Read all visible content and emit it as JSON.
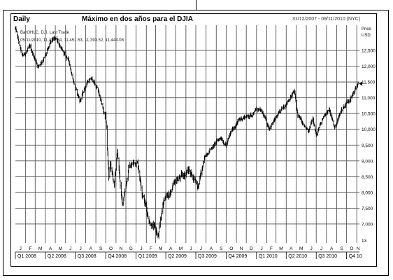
{
  "header": {
    "period": "Daily",
    "title": "Máximo en dos años para el DJIA",
    "date_range": "31/12/2007 - 09/11/2010 (NYC)"
  },
  "legend": {
    "line1": "BarOHLC, DJI, Last Trade",
    "line2": "05/11/2010, 11,434.84, 11,451.53, 11,393.52, 11,444.08"
  },
  "price_axis": {
    "label": "Price",
    "unit": "USD"
  },
  "chart_data": {
    "type": "bar",
    "title": "Máximo en dos años para el DJIA",
    "series": [
      {
        "name": "DJI",
        "x": [
          "2008-01-01",
          "2008-01-22",
          "2008-02-15",
          "2008-03-10",
          "2008-03-31",
          "2008-04-20",
          "2008-05-05",
          "2008-05-20",
          "2008-06-10",
          "2008-07-01",
          "2008-07-15",
          "2008-08-05",
          "2008-08-20",
          "2008-09-05",
          "2008-09-29",
          "2008-10-01",
          "2008-10-10",
          "2008-10-15",
          "2008-10-27",
          "2008-11-05",
          "2008-11-20",
          "2008-12-10",
          "2009-01-05",
          "2009-01-20",
          "2009-02-10",
          "2009-03-02",
          "2009-03-09",
          "2009-03-26",
          "2009-04-15",
          "2009-05-05",
          "2009-06-10",
          "2009-06-30",
          "2009-07-08",
          "2009-07-31",
          "2009-08-25",
          "2009-09-15",
          "2009-10-01",
          "2009-10-20",
          "2009-11-10",
          "2009-11-27",
          "2009-12-15",
          "2010-01-04",
          "2010-01-19",
          "2010-02-08",
          "2010-03-05",
          "2010-04-05",
          "2010-04-26",
          "2010-05-06",
          "2010-05-25",
          "2010-06-08",
          "2010-06-21",
          "2010-07-02",
          "2010-07-27",
          "2010-08-10",
          "2010-08-26",
          "2010-09-15",
          "2010-10-05",
          "2010-10-20",
          "2010-11-05"
        ],
        "values": [
          13200,
          12300,
          12600,
          12000,
          12300,
          12800,
          12900,
          12500,
          12200,
          11300,
          10900,
          11500,
          11600,
          11300,
          10400,
          10500,
          8500,
          8900,
          8200,
          9300,
          7600,
          8800,
          9000,
          8000,
          7100,
          6800,
          6550,
          7800,
          8000,
          8400,
          8700,
          8400,
          8200,
          9200,
          9500,
          9750,
          9500,
          10000,
          10300,
          10400,
          10450,
          10650,
          10500,
          10050,
          10400,
          10900,
          11200,
          10450,
          10100,
          9900,
          10400,
          9800,
          10500,
          10600,
          10050,
          10600,
          10900,
          11100,
          11450
        ]
      }
    ],
    "xlabel": "",
    "ylabel": "Price",
    "y_unit": "USD",
    "ylim": [
      6400,
      13300
    ],
    "y_ticks": [
      7000,
      7500,
      8000,
      8500,
      9000,
      9500,
      10000,
      10500,
      11000,
      11500,
      12000,
      12500
    ],
    "y_tick_labels": [
      "7,000",
      "7,500",
      "8,000",
      "8,500",
      "9,000",
      "9,500",
      "10,000",
      "10,500",
      "11,000",
      "11,500",
      "12,000",
      "12,500"
    ],
    "extra_y_label": "13",
    "x_start": "2008-01-01",
    "x_end": "2010-11-09",
    "month_labels": [
      "J",
      "F",
      "M",
      "A",
      "M",
      "J",
      "J",
      "A",
      "S",
      "O",
      "N",
      "D",
      "J",
      "F",
      "M",
      "A",
      "M",
      "J",
      "J",
      "A",
      "S",
      "O",
      "N",
      "D",
      "J",
      "F",
      "M",
      "A",
      "M",
      "J",
      "J",
      "A",
      "S",
      "O",
      "N"
    ],
    "quarter_labels": [
      "Q1 2008",
      "Q2 2008",
      "Q3 2008",
      "Q4 2008",
      "Q1 2009",
      "Q2 2009",
      "Q3 2009",
      "Q4 2009",
      "Q1 2010",
      "Q2 2010",
      "Q3 2010",
      "Q4 10"
    ],
    "grid": true,
    "colors": {
      "bars": "#000000",
      "grid": "#555555",
      "background": "#ffffff"
    }
  }
}
